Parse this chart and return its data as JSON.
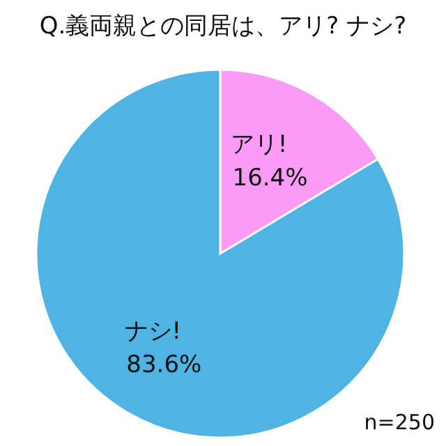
{
  "chart_data": {
    "type": "pie",
    "title": "Q.義両親との同居は、アリ? ナシ?",
    "categories": [
      "アリ!",
      "ナシ!"
    ],
    "values": [
      16.4,
      83.6
    ],
    "colors": [
      "#fa9cf7",
      "#4fb3e3"
    ],
    "value_labels": [
      "16.4%",
      "83.6%"
    ],
    "annotations": [
      "n=250"
    ]
  }
}
